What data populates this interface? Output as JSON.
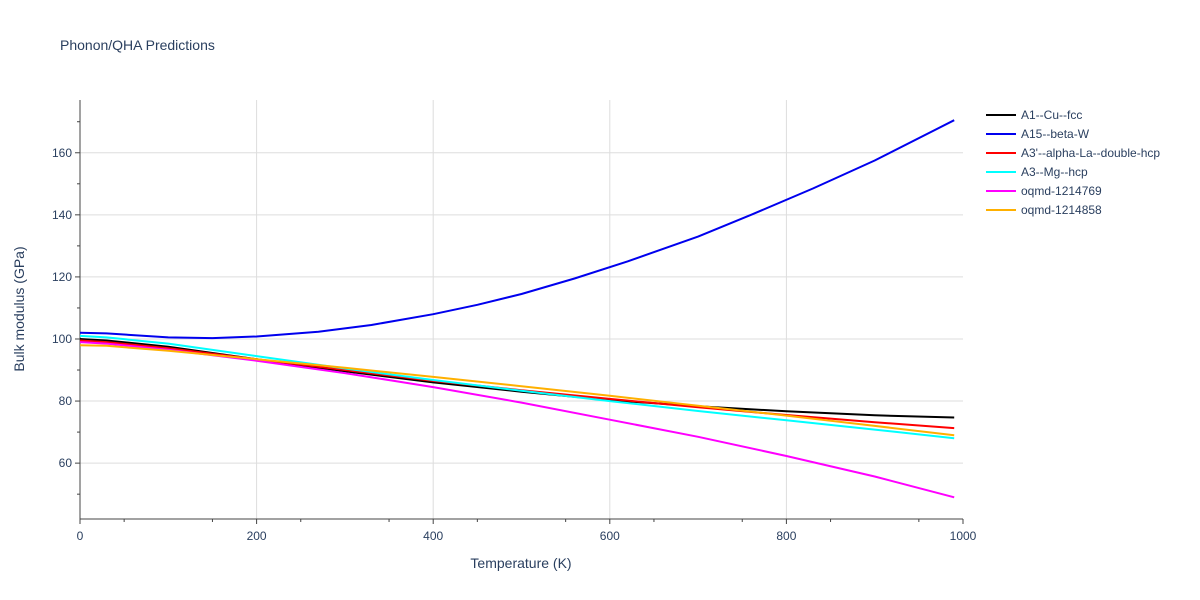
{
  "chart_data": {
    "type": "line",
    "title": "Phonon/QHA Predictions",
    "xlabel": "Temperature (K)",
    "ylabel": "Bulk modulus (GPa)",
    "xlim": [
      0,
      1000
    ],
    "ylim": [
      42,
      177
    ],
    "x_ticks": [
      0,
      200,
      400,
      600,
      800,
      1000
    ],
    "y_ticks": [
      60,
      80,
      100,
      120,
      140,
      160
    ],
    "grid": true,
    "legend_position": "right",
    "series": [
      {
        "name": "A1--Cu--fcc",
        "color": "#000000",
        "x": [
          0,
          30,
          100,
          200,
          300,
          400,
          500,
          600,
          700,
          800,
          900,
          990
        ],
        "y": [
          100.0,
          99.5,
          97.5,
          93.5,
          89.6,
          86.0,
          83.0,
          80.3,
          78.3,
          76.7,
          75.4,
          74.7
        ]
      },
      {
        "name": "A15--beta-W",
        "color": "#0000ee",
        "x": [
          0,
          30,
          100,
          150,
          200,
          270,
          330,
          400,
          450,
          500,
          560,
          620,
          700,
          760,
          830,
          900,
          990
        ],
        "y": [
          102.0,
          101.8,
          100.5,
          100.3,
          100.8,
          102.3,
          104.5,
          108.0,
          111.0,
          114.5,
          119.5,
          125.0,
          133.0,
          140.0,
          148.5,
          157.5,
          170.5
        ]
      },
      {
        "name": "A3'--alpha-La--double-hcp",
        "color": "#ff0000",
        "x": [
          0,
          30,
          100,
          200,
          300,
          400,
          500,
          600,
          700,
          800,
          900,
          990
        ],
        "y": [
          99.5,
          99.0,
          97.0,
          93.5,
          90.0,
          86.5,
          83.5,
          80.7,
          78.0,
          75.5,
          73.2,
          71.3
        ]
      },
      {
        "name": "A3--Mg--hcp",
        "color": "#00ffff",
        "x": [
          0,
          30,
          100,
          200,
          300,
          400,
          500,
          600,
          700,
          800,
          900,
          990
        ],
        "y": [
          101.0,
          100.5,
          98.5,
          94.5,
          90.5,
          86.8,
          83.3,
          80.0,
          76.8,
          73.8,
          70.8,
          68.0
        ]
      },
      {
        "name": "oqmd-1214769",
        "color": "#ff00ff",
        "x": [
          0,
          30,
          100,
          200,
          300,
          400,
          500,
          600,
          700,
          800,
          900,
          990
        ],
        "y": [
          99.0,
          98.5,
          96.5,
          93.0,
          89.0,
          84.5,
          79.5,
          74.0,
          68.5,
          62.3,
          55.7,
          49.0
        ]
      },
      {
        "name": "oqmd-1214858",
        "color": "#ffb000",
        "x": [
          0,
          30,
          100,
          200,
          300,
          400,
          500,
          600,
          700,
          800,
          900,
          990
        ],
        "y": [
          98.0,
          97.8,
          96.2,
          93.5,
          90.7,
          87.8,
          84.8,
          81.7,
          78.5,
          75.3,
          72.0,
          69.0
        ]
      }
    ]
  }
}
